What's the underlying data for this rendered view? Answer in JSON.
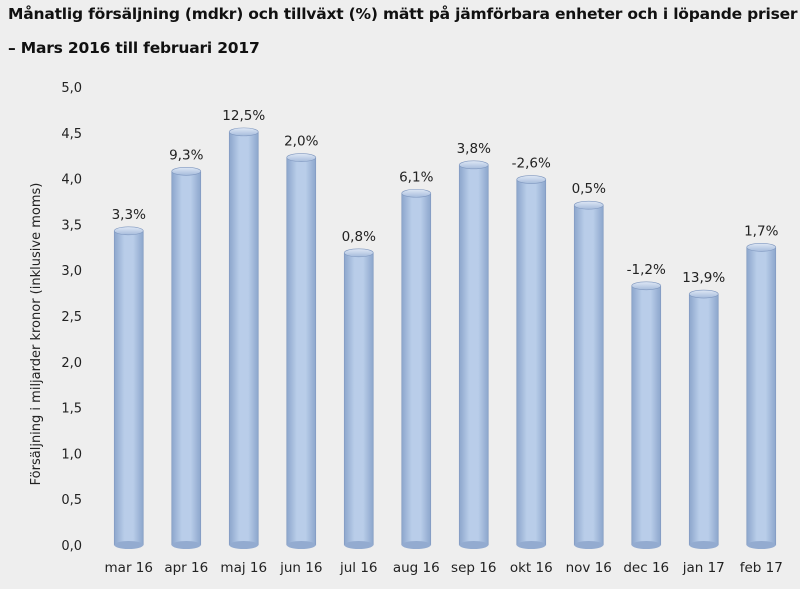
{
  "title": "Månatlig försäljning (mdkr) och tillväxt (%) mätt på jämförbara enheter och i löpande priser",
  "subtitle": "– Mars 2016 till februari 2017",
  "chart_data": {
    "type": "bar",
    "ylabel": "Försäljning i miljarder kronor (inklusive moms)",
    "ylim": [
      0,
      5
    ],
    "yticks": [
      "0,0",
      "0,5",
      "1,0",
      "1,5",
      "2,0",
      "2,5",
      "3,0",
      "3,5",
      "4,0",
      "4,5",
      "5,0"
    ],
    "categories": [
      "mar 16",
      "apr 16",
      "maj 16",
      "jun 16",
      "jul 16",
      "aug 16",
      "sep 16",
      "okt 16",
      "nov 16",
      "dec 16",
      "jan 17",
      "feb 17"
    ],
    "values": [
      3.43,
      4.08,
      4.51,
      4.23,
      3.19,
      3.84,
      4.15,
      3.99,
      3.71,
      2.83,
      2.74,
      3.25
    ],
    "data_labels": [
      "3,3%",
      "9,3%",
      "12,5%",
      "2,0%",
      "0,8%",
      "6,1%",
      "3,8%",
      "-2,6%",
      "0,5%",
      "-1,2%",
      "13,9%",
      "1,7%"
    ],
    "grid": false,
    "legend": "none",
    "bar_color": "#a8bfdf"
  }
}
